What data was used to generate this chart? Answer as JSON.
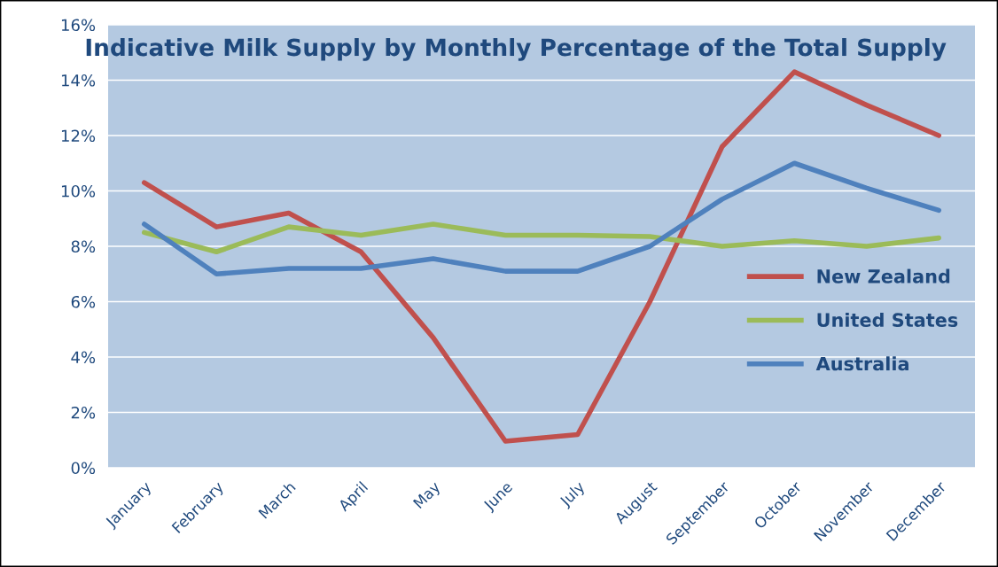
{
  "chart_data": {
    "type": "line",
    "title": "Indicative Milk Supply by Monthly Percentage of the Total Supply",
    "categories": [
      "January",
      "February",
      "March",
      "April",
      "May",
      "June",
      "July",
      "August",
      "September",
      "October",
      "November",
      "December"
    ],
    "series": [
      {
        "name": "New Zealand",
        "color": "#c0504d",
        "values": [
          10.3,
          8.7,
          9.2,
          7.8,
          4.7,
          0.96,
          1.2,
          6.0,
          11.6,
          14.3,
          13.1,
          12.0
        ]
      },
      {
        "name": "United States",
        "color": "#9bbb59",
        "values": [
          8.5,
          7.8,
          8.7,
          8.4,
          8.8,
          8.4,
          8.4,
          8.35,
          8.0,
          8.2,
          8.0,
          8.3
        ]
      },
      {
        "name": "Australia",
        "color": "#4f81bd",
        "values": [
          8.8,
          7.0,
          7.2,
          7.2,
          7.55,
          7.1,
          7.1,
          8.0,
          9.7,
          11.0,
          10.1,
          9.3
        ]
      }
    ],
    "ylim": [
      0,
      16
    ],
    "yticks": [
      {
        "value": 0,
        "label": "0%"
      },
      {
        "value": 2,
        "label": "2%"
      },
      {
        "value": 4,
        "label": "4%"
      },
      {
        "value": 6,
        "label": "6%"
      },
      {
        "value": 8,
        "label": "8%"
      },
      {
        "value": 10,
        "label": "10%"
      },
      {
        "value": 12,
        "label": "12%"
      },
      {
        "value": 14,
        "label": "14%"
      },
      {
        "value": 16,
        "label": "16%"
      }
    ],
    "grid": "y",
    "legend": "right",
    "marker": "none",
    "line_style": "solid"
  }
}
